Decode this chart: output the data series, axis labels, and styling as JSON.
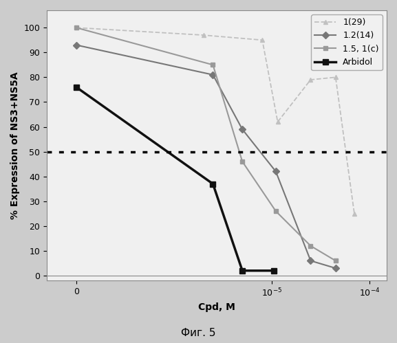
{
  "xlabel": "Cpd, M",
  "ylabel": "% Expression of NS3+NS5A",
  "caption": "Фиг. 5",
  "hline_y": 50,
  "series": [
    {
      "label": "1(29)",
      "color": "#c0c0c0",
      "linestyle": "--",
      "marker": "^",
      "markersize": 5,
      "linewidth": 1.3,
      "x": [
        1e-07,
        2e-06,
        8e-06,
        1.15e-05,
        2.5e-05,
        4.5e-05,
        7e-05
      ],
      "y": [
        100,
        97,
        95,
        62,
        79,
        80,
        25
      ]
    },
    {
      "label": "1.2(14)",
      "color": "#777777",
      "linestyle": "-",
      "marker": "D",
      "markersize": 5,
      "linewidth": 1.5,
      "x": [
        1e-07,
        2.5e-06,
        5e-06,
        1.1e-05,
        2.5e-05,
        4.5e-05
      ],
      "y": [
        93,
        81,
        59,
        42,
        6,
        3
      ]
    },
    {
      "label": "1.5, 1(с)",
      "color": "#999999",
      "linestyle": "-",
      "marker": "s",
      "markersize": 5,
      "linewidth": 1.5,
      "x": [
        1e-07,
        2.5e-06,
        5e-06,
        1.1e-05,
        2.5e-05,
        4.5e-05
      ],
      "y": [
        100,
        85,
        46,
        26,
        12,
        6
      ]
    },
    {
      "label": "Arbidol",
      "color": "#111111",
      "linestyle": "-",
      "marker": "s",
      "markersize": 6,
      "linewidth": 2.5,
      "x": [
        1e-07,
        2.5e-06,
        5e-06,
        1.05e-05
      ],
      "y": [
        76,
        37,
        2,
        2
      ]
    }
  ],
  "xlim": [
    5e-08,
    0.00015
  ],
  "ylim": [
    -2,
    107
  ],
  "yticks": [
    0,
    10,
    20,
    30,
    40,
    50,
    60,
    70,
    80,
    90,
    100
  ],
  "bg_color": "#cccccc",
  "plot_bg_color": "#f0f0f0",
  "legend_fontsize": 9,
  "axis_fontsize": 9,
  "label_fontsize": 10
}
